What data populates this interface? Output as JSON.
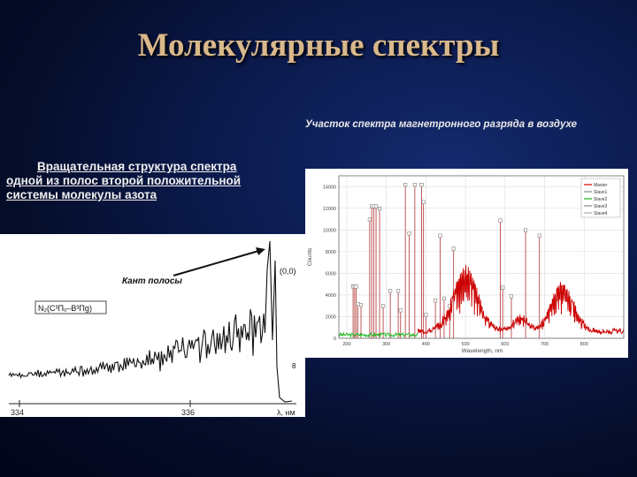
{
  "slide": {
    "title": "Молекулярные спектры",
    "right_caption": "Участок спектра магнетронного разряда в воздухе",
    "left_caption_lines": [
      "Вращательная структура спектра",
      "одной из полос второй положительной",
      "системы молекулы азота"
    ]
  },
  "left_figure": {
    "annotation": "Кант полосы",
    "formula": "N₂(C³Πᵤ–B³Πg)",
    "peak_label": "(0,0)",
    "side_label": "8",
    "tick_labels": [
      "334",
      "336",
      "λ, нм"
    ]
  },
  "chart_data": {
    "type": "line",
    "title": "",
    "xlabel": "Wavelength, nm",
    "ylabel": "Counts",
    "xlim": [
      180,
      900
    ],
    "ylim": [
      0,
      15000
    ],
    "yticks": [
      0,
      2000,
      4000,
      6000,
      8000,
      10000,
      12000,
      14000
    ],
    "ytick_labels": [
      "0",
      "2000",
      "4000",
      "6000",
      "8000",
      "10000",
      "12000",
      "14000"
    ],
    "xtick_labels": [
      "200",
      "300",
      "400",
      "500",
      "600",
      "700",
      "800"
    ],
    "legend": [
      "Master",
      "Slave1",
      "Slave2",
      "Slave3",
      "Slave4"
    ],
    "legend_colors": [
      "#cc0000",
      "#8a8a8a",
      "#18b818",
      "#888888",
      "#aaaaaa"
    ],
    "lines_x": [
      216,
      220,
      224,
      228,
      236,
      258,
      263,
      268,
      274,
      283,
      292,
      310,
      330,
      336,
      348,
      358,
      372,
      389,
      394,
      400,
      424,
      436,
      446,
      460,
      470,
      588,
      594,
      616,
      652,
      687
    ],
    "lines_y": [
      4600,
      4600,
      4600,
      3000,
      2900,
      10800,
      12000,
      12000,
      12000,
      11800,
      2800,
      4200,
      4200,
      2400,
      14000,
      9500,
      14000,
      14000,
      12400,
      2000,
      3300,
      9300,
      3500,
      2800,
      8100,
      10700,
      4500,
      3700,
      9800,
      9300
    ],
    "line_labels": [
      "C",
      "C",
      "C",
      "C",
      "C",
      "C",
      "C",
      "C",
      "C",
      "C",
      "C",
      "C",
      "C",
      "C",
      "C",
      "C",
      "C",
      "C",
      "C",
      "C",
      "C",
      "C",
      "C",
      "C",
      "C",
      "C",
      "C",
      "C",
      "C",
      "C"
    ],
    "series_green_x": [
      180,
      380
    ],
    "series_red_x": [
      380,
      900
    ]
  }
}
